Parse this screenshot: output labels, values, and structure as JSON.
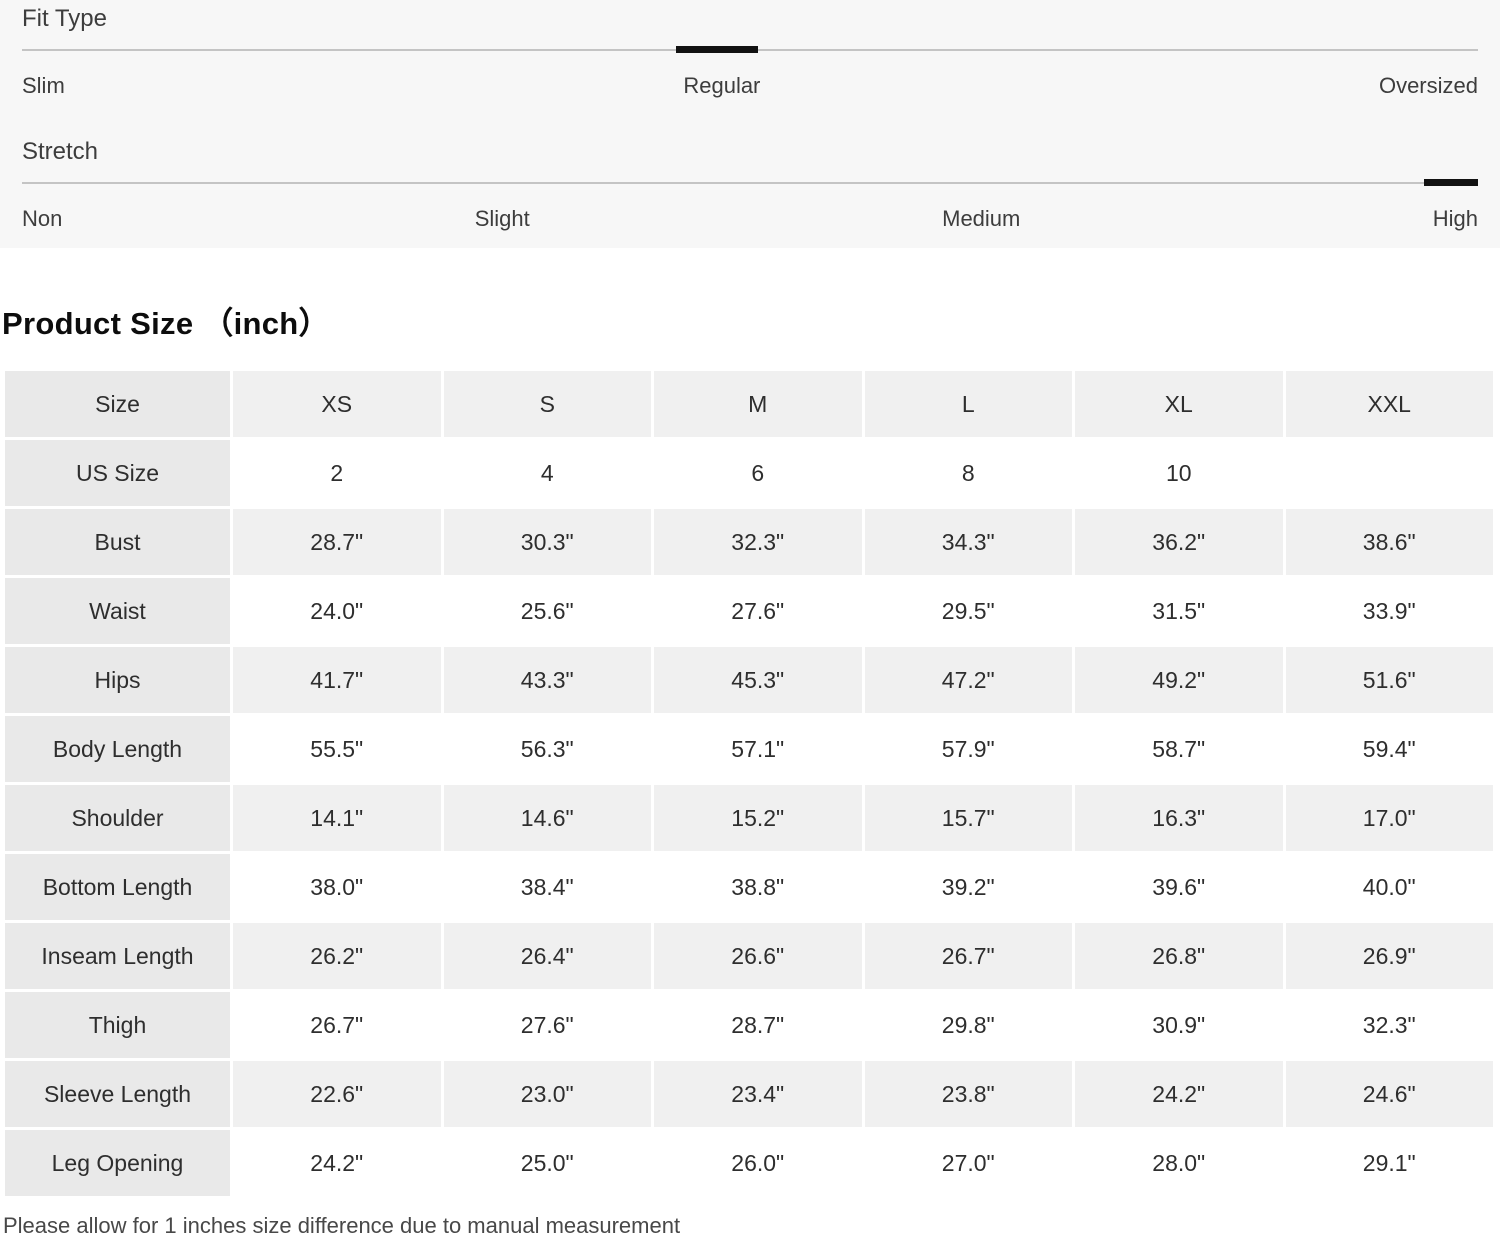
{
  "fit_scales": {
    "fit_type": {
      "label": "Fit Type",
      "options": [
        "Slim",
        "Regular",
        "Oversized"
      ],
      "selected": "Regular"
    },
    "stretch": {
      "label": "Stretch",
      "options": [
        "Non",
        "Slight",
        "Medium",
        "High"
      ],
      "selected": "High"
    }
  },
  "size_chart": {
    "title": "Product Size （inch）",
    "columns": [
      "Size",
      "XS",
      "S",
      "M",
      "L",
      "XL",
      "XXL"
    ],
    "rows": [
      {
        "label": "US Size",
        "values": [
          "2",
          "4",
          "6",
          "8",
          "10",
          ""
        ]
      },
      {
        "label": "Bust",
        "values": [
          "28.7\"",
          "30.3\"",
          "32.3\"",
          "34.3\"",
          "36.2\"",
          "38.6\""
        ]
      },
      {
        "label": "Waist",
        "values": [
          "24.0\"",
          "25.6\"",
          "27.6\"",
          "29.5\"",
          "31.5\"",
          "33.9\""
        ]
      },
      {
        "label": "Hips",
        "values": [
          "41.7\"",
          "43.3\"",
          "45.3\"",
          "47.2\"",
          "49.2\"",
          "51.6\""
        ]
      },
      {
        "label": "Body Length",
        "values": [
          "55.5\"",
          "56.3\"",
          "57.1\"",
          "57.9\"",
          "58.7\"",
          "59.4\""
        ]
      },
      {
        "label": "Shoulder",
        "values": [
          "14.1\"",
          "14.6\"",
          "15.2\"",
          "15.7\"",
          "16.3\"",
          "17.0\""
        ]
      },
      {
        "label": "Bottom Length",
        "values": [
          "38.0\"",
          "38.4\"",
          "38.8\"",
          "39.2\"",
          "39.6\"",
          "40.0\""
        ]
      },
      {
        "label": "Inseam Length",
        "values": [
          "26.2\"",
          "26.4\"",
          "26.6\"",
          "26.7\"",
          "26.8\"",
          "26.9\""
        ]
      },
      {
        "label": "Thigh",
        "values": [
          "26.7\"",
          "27.6\"",
          "28.7\"",
          "29.8\"",
          "30.9\"",
          "32.3\""
        ]
      },
      {
        "label": "Sleeve Length",
        "values": [
          "22.6\"",
          "23.0\"",
          "23.4\"",
          "23.8\"",
          "24.2\"",
          "24.6\""
        ]
      },
      {
        "label": "Leg Opening",
        "values": [
          "24.2\"",
          "25.0\"",
          "26.0\"",
          "27.0\"",
          "28.0\"",
          "29.1\""
        ]
      }
    ],
    "note": "Please allow for 1 inches size difference due to manual measurement"
  },
  "colors": {
    "band_bg": "#f7f7f7",
    "marker": "#121212",
    "track_line": "#c4c4c4",
    "row_label_bg": "#e9e9e9",
    "alt_row_bg": "#f0f0f0"
  }
}
